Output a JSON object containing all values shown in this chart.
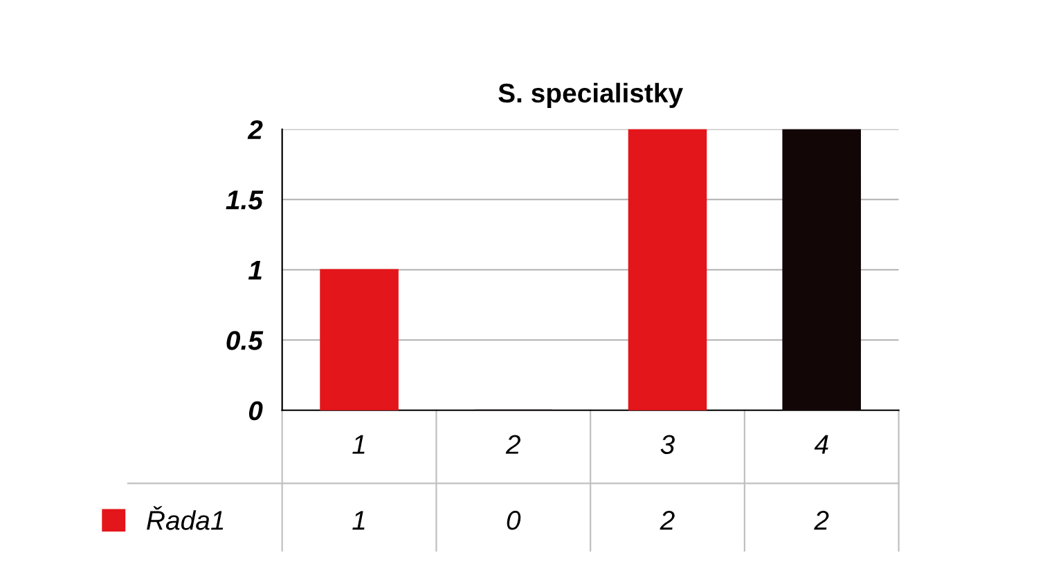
{
  "chart_data": {
    "type": "bar",
    "title": "S. specialistky",
    "categories": [
      "1",
      "2",
      "3",
      "4"
    ],
    "series": [
      {
        "name": "Řada1",
        "color": "#e3161b",
        "colors": [
          "#e3161b",
          "#1a0808",
          "#e3161b",
          "#120606"
        ],
        "values": [
          1,
          0,
          2,
          2
        ]
      }
    ],
    "ylim": [
      0,
      2
    ],
    "yticks": [
      0,
      0.5,
      1,
      1.5,
      2
    ],
    "grid": "y",
    "legend": "bottom left",
    "data_labels": true
  }
}
